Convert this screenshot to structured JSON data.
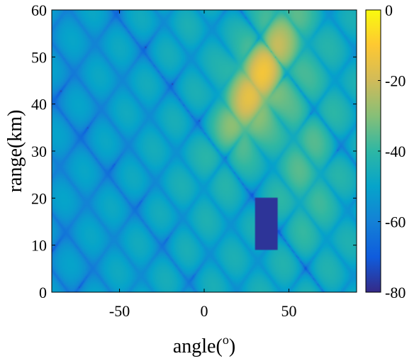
{
  "chart_data": {
    "type": "heatmap",
    "title": "",
    "xlabel": "angle(",
    "xlabel_sup": "o",
    "xlabel_close": ")",
    "ylabel": "range(km)",
    "xlim": [
      -90,
      90
    ],
    "ylim": [
      0,
      60
    ],
    "x_ticks": [
      -50,
      0,
      50
    ],
    "y_ticks": [
      0,
      10,
      20,
      30,
      40,
      50,
      60
    ],
    "x_tick_labels": [
      "-50",
      "0",
      "50"
    ],
    "y_tick_labels": [
      "0",
      "10",
      "20",
      "30",
      "40",
      "50",
      "60"
    ],
    "colorbar": {
      "range": [
        -80,
        0
      ],
      "ticks": [
        0,
        -20,
        -40,
        -60,
        -80
      ],
      "tick_labels": [
        "0",
        "-20",
        "-40",
        "-60",
        "-80"
      ],
      "colormap": "parula",
      "colors": [
        "#352a87",
        "#0f5cdd",
        "#1481d6",
        "#06a4ca",
        "#2eb7a4",
        "#87bf77",
        "#d1bb59",
        "#fec832",
        "#f9fb0e"
      ]
    },
    "grid": false,
    "features": {
      "main_lobe": {
        "angle": 32,
        "range": 45,
        "value": 0
      },
      "null_region": {
        "angle_range": [
          30,
          43
        ],
        "range_range": [
          9,
          20
        ],
        "value": -80
      },
      "background_level": -45
    }
  }
}
